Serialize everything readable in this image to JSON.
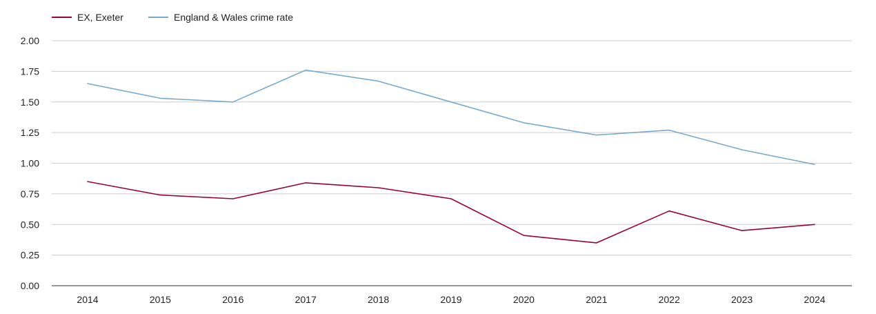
{
  "chart_data": {
    "type": "line",
    "title": "",
    "xlabel": "",
    "ylabel": "",
    "categories": [
      "2014",
      "2015",
      "2016",
      "2017",
      "2018",
      "2019",
      "2020",
      "2021",
      "2022",
      "2023",
      "2024"
    ],
    "ylim": [
      0,
      2
    ],
    "yticks": [
      "0.00",
      "0.25",
      "0.50",
      "0.75",
      "1.00",
      "1.25",
      "1.50",
      "1.75",
      "2.00"
    ],
    "grid": true,
    "legend_position": "top-left",
    "series": [
      {
        "name": "EX, Exeter",
        "color": "#990033",
        "values": [
          0.85,
          0.74,
          0.71,
          0.84,
          0.8,
          0.71,
          0.41,
          0.35,
          0.61,
          0.45,
          0.5
        ]
      },
      {
        "name": "England & Wales crime rate",
        "color": "#77aacc",
        "values": [
          1.65,
          1.53,
          1.5,
          1.76,
          1.67,
          1.5,
          1.33,
          1.23,
          1.27,
          1.11,
          0.99
        ]
      }
    ]
  }
}
